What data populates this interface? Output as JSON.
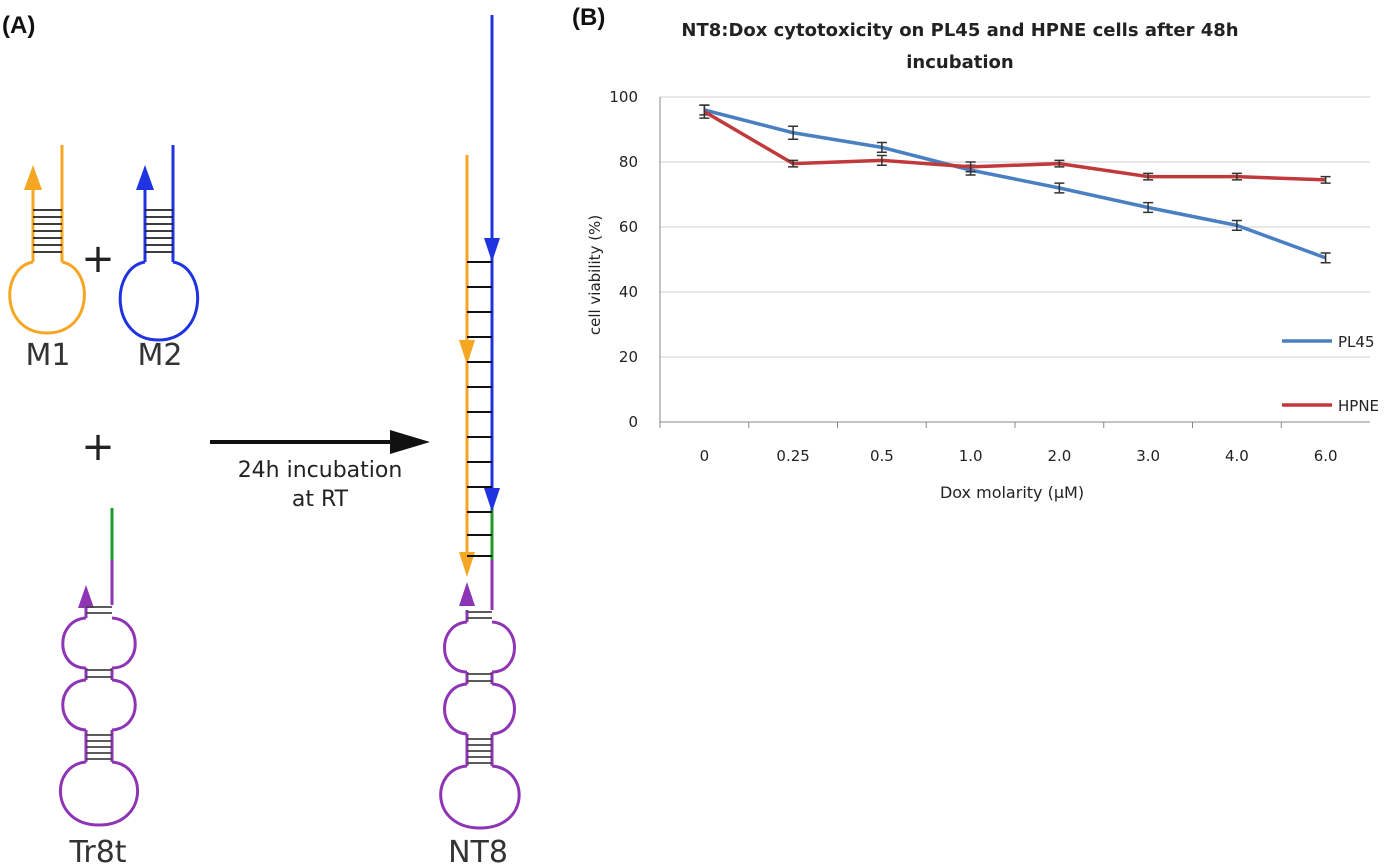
{
  "panel_a": {
    "label": "(A)",
    "strands": {
      "m1": "M1",
      "m2": "M2",
      "tr8t": "Tr8t",
      "nt8": "NT8"
    },
    "plus_sign": "+",
    "arrow_text": [
      "24h incubation",
      "at RT"
    ],
    "colors": {
      "m1": "#f5a623",
      "m2": "#1f33e0",
      "tr8t": "#8e35b5",
      "toehold": "#1e9a2a"
    }
  },
  "panel_b": {
    "label": "(B)"
  },
  "chart_data": {
    "type": "line",
    "title": "NT8:Dox cytotoxicity on PL45 and HPNE cells after 48h incubation",
    "title_lines": [
      "NT8:Dox cytotoxicity on PL45 and HPNE cells after 48h",
      "incubation"
    ],
    "xlabel": "Dox molarity (µM)",
    "ylabel": "cell viability (%)",
    "categories": [
      "0",
      "0.25",
      "0.5",
      "1.0",
      "2.0",
      "3.0",
      "4.0",
      "6.0"
    ],
    "ylim": [
      0,
      100
    ],
    "yticks": [
      "0",
      "20",
      "40",
      "60",
      "80",
      "100"
    ],
    "grid": true,
    "legend_position": "right",
    "series": [
      {
        "name": "PL45",
        "color": "#4a7fc1",
        "values": [
          96,
          89,
          84.5,
          77.5,
          72,
          66,
          60.5,
          50.5
        ],
        "errors": [
          1.5,
          2,
          1.5,
          1.5,
          1.5,
          1.5,
          1.5,
          1.5
        ]
      },
      {
        "name": "HPNE",
        "color": "#c0393b",
        "values": [
          95.5,
          79.5,
          80.5,
          78.5,
          79.5,
          75.5,
          75.5,
          74.5
        ],
        "errors": [
          2,
          1,
          1.5,
          1.5,
          1,
          1,
          1,
          1
        ]
      }
    ]
  }
}
